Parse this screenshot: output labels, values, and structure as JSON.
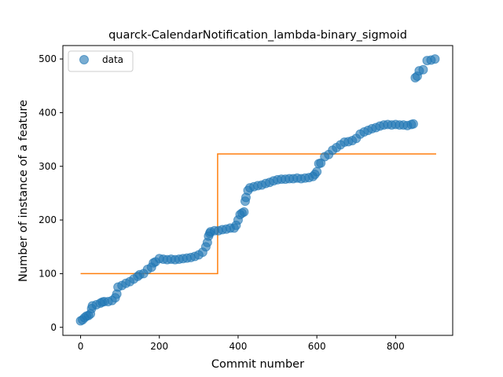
{
  "chart_data": {
    "type": "scatter",
    "title": "quarck-CalendarNotification_lambda-binary_sigmoid",
    "xlabel": "Commit number",
    "ylabel": "Number of instance of a feature",
    "xlim": [
      -45,
      945
    ],
    "ylim": [
      -15,
      525
    ],
    "xticks": [
      0,
      200,
      400,
      600,
      800
    ],
    "yticks": [
      0,
      100,
      200,
      300,
      400,
      500
    ],
    "grid": false,
    "legend": {
      "position": "top-left",
      "entries": [
        "data"
      ]
    },
    "colors": {
      "data": "#1f77b4",
      "fit": "#ff7f0e"
    },
    "series": [
      {
        "name": "data",
        "kind": "scatter",
        "points": [
          [
            0,
            12
          ],
          [
            5,
            14
          ],
          [
            10,
            18
          ],
          [
            15,
            21
          ],
          [
            20,
            22
          ],
          [
            25,
            25
          ],
          [
            28,
            35
          ],
          [
            30,
            40
          ],
          [
            40,
            42
          ],
          [
            50,
            45
          ],
          [
            55,
            47
          ],
          [
            60,
            48
          ],
          [
            70,
            48
          ],
          [
            80,
            50
          ],
          [
            88,
            55
          ],
          [
            92,
            62
          ],
          [
            95,
            75
          ],
          [
            105,
            78
          ],
          [
            115,
            82
          ],
          [
            125,
            85
          ],
          [
            135,
            90
          ],
          [
            145,
            95
          ],
          [
            150,
            98
          ],
          [
            160,
            100
          ],
          [
            170,
            108
          ],
          [
            180,
            112
          ],
          [
            185,
            120
          ],
          [
            190,
            122
          ],
          [
            200,
            128
          ],
          [
            210,
            127
          ],
          [
            220,
            126
          ],
          [
            230,
            127
          ],
          [
            240,
            126
          ],
          [
            250,
            127
          ],
          [
            260,
            128
          ],
          [
            270,
            129
          ],
          [
            280,
            130
          ],
          [
            290,
            132
          ],
          [
            300,
            135
          ],
          [
            310,
            140
          ],
          [
            318,
            150
          ],
          [
            322,
            158
          ],
          [
            325,
            170
          ],
          [
            328,
            175
          ],
          [
            330,
            178
          ],
          [
            340,
            180
          ],
          [
            350,
            180
          ],
          [
            360,
            182
          ],
          [
            370,
            183
          ],
          [
            380,
            185
          ],
          [
            390,
            185
          ],
          [
            395,
            190
          ],
          [
            400,
            200
          ],
          [
            405,
            210
          ],
          [
            410,
            213
          ],
          [
            415,
            215
          ],
          [
            418,
            235
          ],
          [
            420,
            242
          ],
          [
            425,
            255
          ],
          [
            430,
            260
          ],
          [
            440,
            262
          ],
          [
            450,
            264
          ],
          [
            460,
            265
          ],
          [
            470,
            268
          ],
          [
            480,
            270
          ],
          [
            490,
            273
          ],
          [
            500,
            275
          ],
          [
            510,
            276
          ],
          [
            520,
            276
          ],
          [
            530,
            277
          ],
          [
            540,
            277
          ],
          [
            550,
            278
          ],
          [
            560,
            277
          ],
          [
            570,
            278
          ],
          [
            580,
            279
          ],
          [
            590,
            281
          ],
          [
            595,
            285
          ],
          [
            600,
            290
          ],
          [
            605,
            305
          ],
          [
            610,
            306
          ],
          [
            620,
            318
          ],
          [
            630,
            322
          ],
          [
            640,
            330
          ],
          [
            650,
            335
          ],
          [
            660,
            340
          ],
          [
            670,
            345
          ],
          [
            680,
            346
          ],
          [
            690,
            348
          ],
          [
            700,
            352
          ],
          [
            710,
            360
          ],
          [
            720,
            364
          ],
          [
            730,
            367
          ],
          [
            740,
            370
          ],
          [
            750,
            372
          ],
          [
            760,
            375
          ],
          [
            770,
            377
          ],
          [
            780,
            378
          ],
          [
            790,
            377
          ],
          [
            800,
            378
          ],
          [
            810,
            377
          ],
          [
            820,
            377
          ],
          [
            830,
            376
          ],
          [
            840,
            378
          ],
          [
            845,
            379
          ],
          [
            850,
            465
          ],
          [
            855,
            468
          ],
          [
            860,
            478
          ],
          [
            870,
            480
          ],
          [
            880,
            497
          ],
          [
            890,
            498
          ],
          [
            900,
            500
          ]
        ]
      },
      {
        "name": "",
        "kind": "line",
        "points": [
          [
            0,
            100
          ],
          [
            348,
            100
          ],
          [
            348,
            323
          ],
          [
            903,
            323
          ]
        ]
      }
    ]
  }
}
